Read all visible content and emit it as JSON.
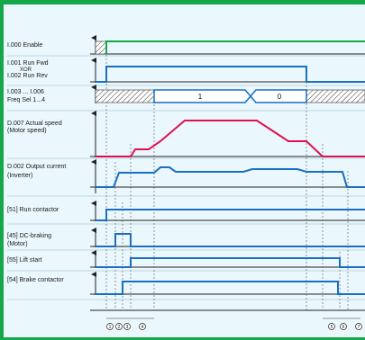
{
  "signals": {
    "enable": {
      "label": "I.000 Enable"
    },
    "run_fwd": {
      "label": "I.001 Run Fwd"
    },
    "xor": {
      "label": "XOR"
    },
    "run_rev": {
      "label": "I.002 Run Rev"
    },
    "freq_sel_range": {
      "label": "I.003 ... I.006"
    },
    "freq_sel": {
      "label": "Freq Sel 1...4"
    },
    "actual_speed": {
      "label": "D.007 Actual speed"
    },
    "actual_speed_sub": {
      "label": "(Motor speed)"
    },
    "output_current": {
      "label": "D.002 Output current"
    },
    "output_current_sub": {
      "label": "(Inverter)"
    },
    "run_contactor": {
      "label": "[51] Run contactor"
    },
    "dc_braking": {
      "label": "[45] DC-braking"
    },
    "dc_braking_sub": {
      "label": "(Motor)"
    },
    "lift_start": {
      "label": "[55] Lift start"
    },
    "brake_contactor": {
      "label": "[54] Brake contactor"
    }
  },
  "freq_values": [
    "1",
    "0"
  ],
  "time_markers": [
    "1",
    "2",
    "3",
    "4",
    "5",
    "6",
    "7"
  ],
  "colors": {
    "frame": "#15a84a",
    "background": "#eaf7fc",
    "blue_trace": "#1a6fc4",
    "red_trace": "#e0114e",
    "green_trace": "#15a84a",
    "axis": "#222222"
  }
}
